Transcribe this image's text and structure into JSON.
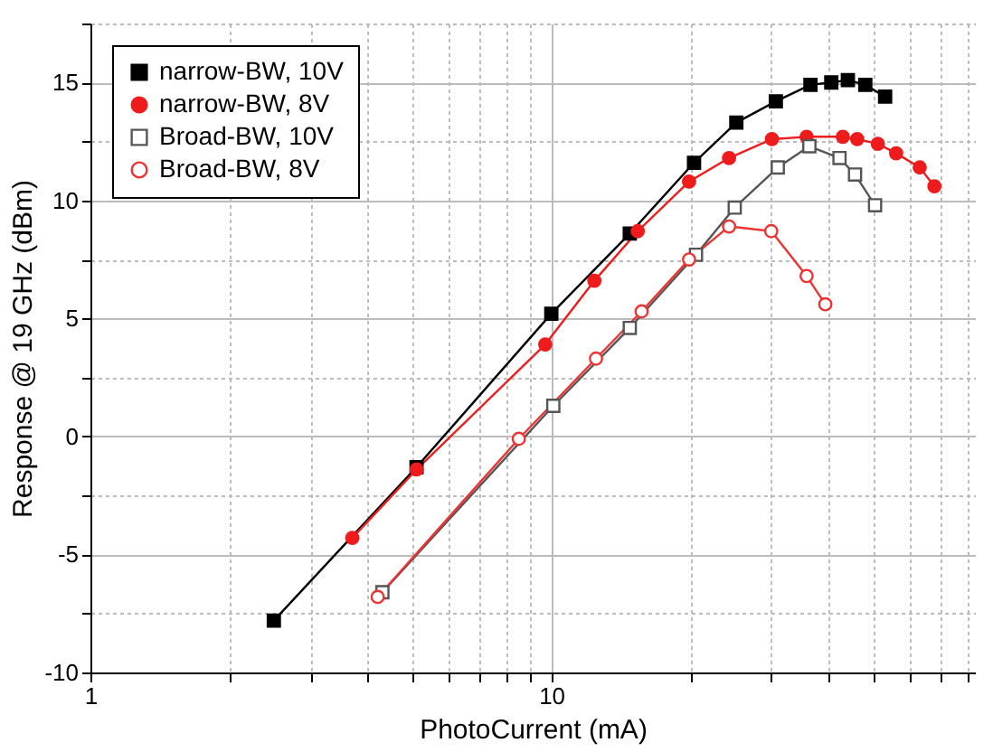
{
  "chart_data": {
    "type": "line",
    "xlabel": "PhotoCurrent (mA)",
    "ylabel": "Response @ 19 GHz (dBm)",
    "log": "x",
    "grid": true,
    "legend": "top left",
    "line_style": "solid",
    "xlim": [
      1,
      83
    ],
    "xticks": [
      1,
      {
        "value": 2,
        "label": null
      },
      {
        "value": 3,
        "label": null
      },
      {
        "value": 4,
        "label": null
      },
      {
        "value": 5,
        "label": null
      },
      {
        "value": 6,
        "label": null
      },
      {
        "value": 7,
        "label": null
      },
      {
        "value": 8,
        "label": null
      },
      {
        "value": 9,
        "label": null
      },
      10,
      {
        "value": 20,
        "label": null
      },
      {
        "value": 30,
        "label": null
      },
      {
        "value": 40,
        "label": null
      },
      {
        "value": 50,
        "label": null
      },
      {
        "value": 60,
        "label": null
      },
      {
        "value": 70,
        "label": null
      },
      {
        "value": 80,
        "label": null
      }
    ],
    "ylim": [
      -10,
      17.5
    ],
    "yticks": [
      -10,
      {
        "value": -7.5,
        "label": null
      },
      -5,
      {
        "value": -2.5,
        "label": null
      },
      0,
      {
        "value": 2.5,
        "label": null
      },
      5,
      {
        "value": 7.5,
        "label": null
      },
      10,
      {
        "value": 12.5,
        "label": null
      },
      15,
      {
        "value": 17.5,
        "label": null
      }
    ],
    "series": [
      {
        "name": "narrow-BW, 10V",
        "color": "#000000",
        "marker": "square",
        "x": [
          2.5,
          5.1,
          10,
          14.8,
          20.4,
          25.2,
          30.7,
          36.5,
          40.5,
          44,
          48,
          53
        ],
        "values": [
          -7.8,
          -1.3,
          5.2,
          8.6,
          11.6,
          13.3,
          14.2,
          14.9,
          15.0,
          15.1,
          14.9,
          14.4
        ]
      },
      {
        "name": "narrow-BW, 8V",
        "color": "#ee1c1c",
        "marker": "circle",
        "x": [
          3.7,
          5.1,
          9.7,
          12.4,
          15.4,
          19.9,
          24.3,
          30.1,
          35.8,
          42.9,
          46.1,
          51.1,
          56.0,
          63.0,
          67.8
        ],
        "values": [
          -4.3,
          -1.4,
          3.9,
          6.6,
          8.7,
          10.8,
          11.8,
          12.6,
          12.7,
          12.7,
          12.6,
          12.4,
          12.0,
          11.4,
          10.6
        ]
      },
      {
        "name": "Broad-BW, 10V",
        "color": "#555555",
        "marker": "square-open",
        "x": [
          4.3,
          10.1,
          14.8,
          20.6,
          25.0,
          31.0,
          36.3,
          42.2,
          45.6,
          50.4
        ],
        "values": [
          -6.6,
          1.3,
          4.6,
          7.7,
          9.7,
          11.4,
          12.3,
          11.8,
          11.1,
          9.8
        ]
      },
      {
        "name": "Broad-BW, 8V",
        "color": "#ee3333",
        "marker": "circle-open",
        "x": [
          4.2,
          8.5,
          12.5,
          15.7,
          19.9,
          24.3,
          30.0,
          35.8,
          39.3
        ],
        "values": [
          -6.8,
          -0.1,
          3.3,
          5.3,
          7.5,
          8.9,
          8.7,
          6.8,
          5.6
        ]
      }
    ]
  }
}
